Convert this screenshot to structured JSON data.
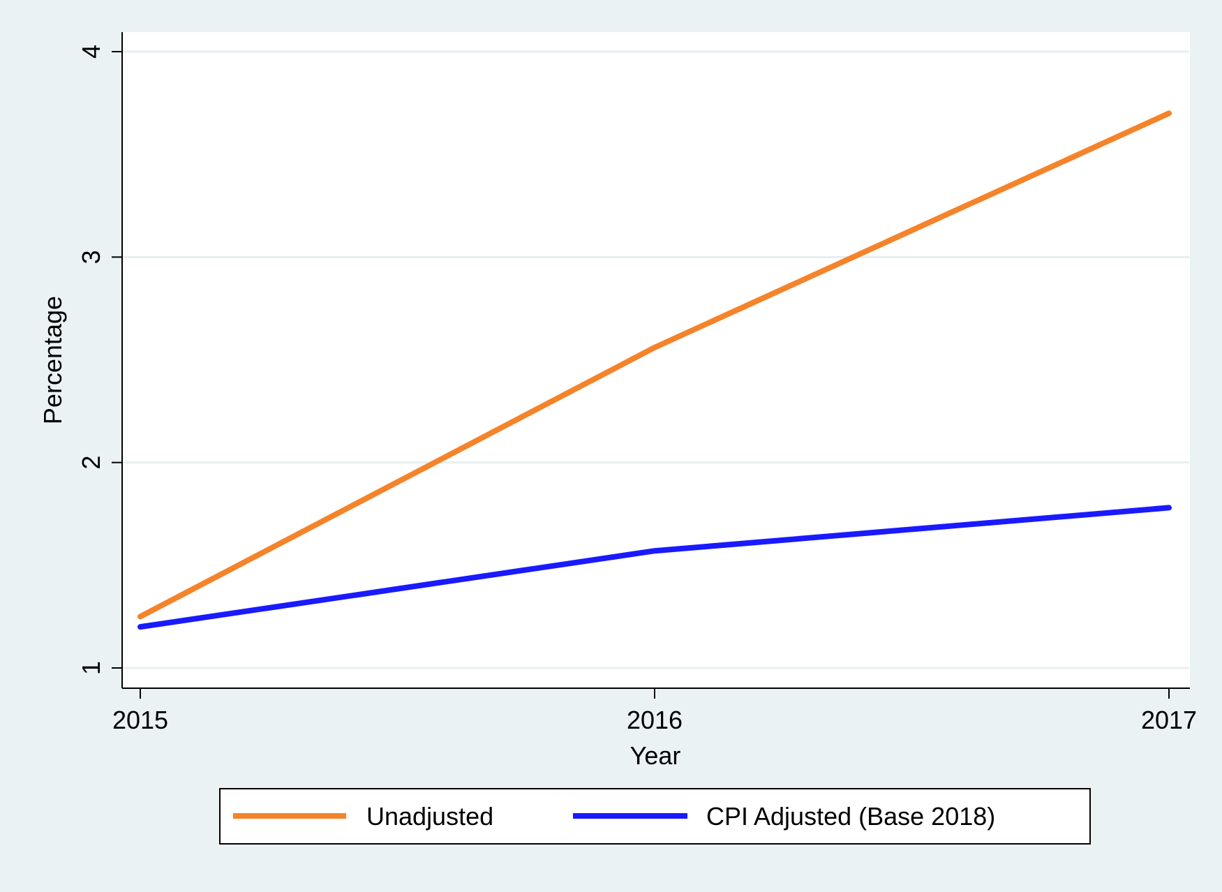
{
  "chart_data": {
    "type": "line",
    "title": "",
    "xlabel": "Year",
    "ylabel": "Percentage",
    "x": [
      2015,
      2016,
      2017
    ],
    "xticks": [
      "2015",
      "2016",
      "2017"
    ],
    "yticks": [
      "1",
      "2",
      "3",
      "4"
    ],
    "xlim": [
      2015,
      2017
    ],
    "ylim": [
      1,
      4
    ],
    "grid": "horizontal",
    "legend_position": "bottom",
    "series": [
      {
        "name": "Unadjusted",
        "color": "#f5832a",
        "values": [
          1.25,
          2.56,
          3.7
        ]
      },
      {
        "name": "CPI Adjusted (Base 2018)",
        "color": "#1a1aff",
        "values": [
          1.2,
          1.57,
          1.78
        ]
      }
    ]
  },
  "colors": {
    "background": "#eaf2f3",
    "plot_background": "#ffffff",
    "gridline": "#e6eff0"
  }
}
